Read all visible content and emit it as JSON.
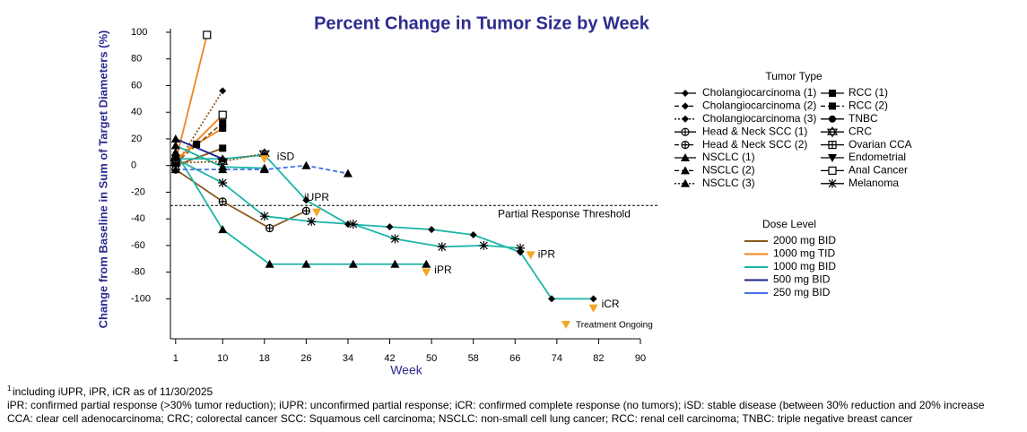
{
  "chart_data": {
    "type": "line",
    "title": "Percent Change in Tumor Size by Week",
    "y_label": "Change from Baseline in Sum of Target Diameters (%)",
    "x_label": "Week",
    "xlim": [
      0,
      90
    ],
    "xticks": [
      1,
      10,
      18,
      26,
      34,
      42,
      50,
      58,
      66,
      74,
      82,
      90
    ],
    "ylim": [
      -130,
      100
    ],
    "yticks": [
      -100,
      -80,
      -60,
      -40,
      -20,
      0,
      20,
      40,
      60,
      80,
      100
    ],
    "threshold": {
      "value": -30,
      "label": "Partial Response Threshold"
    },
    "series": [
      {
        "color": "#F5821F",
        "marker": "open-square",
        "dash": "solid",
        "x": [
          1,
          7
        ],
        "values": [
          3,
          98
        ]
      },
      {
        "color": "#8B5A1E",
        "marker": "diamond",
        "dash": "dotted",
        "x": [
          1,
          10
        ],
        "values": [
          0,
          56
        ]
      },
      {
        "color": "#F5821F",
        "marker": "square",
        "dash": "solid",
        "x": [
          1,
          5,
          10
        ],
        "values": [
          5,
          16,
          28
        ]
      },
      {
        "color": "#8B5A1E",
        "marker": "square",
        "dash": "dashed",
        "x": [
          1,
          10
        ],
        "values": [
          2,
          32
        ]
      },
      {
        "color": "#F5821F",
        "marker": "open-square",
        "dash": "solid",
        "x": [
          1,
          10
        ],
        "values": [
          3,
          38
        ]
      },
      {
        "color": "#8B5A1E",
        "marker": "square",
        "dash": "solid",
        "x": [
          1,
          10
        ],
        "values": [
          0,
          13
        ]
      },
      {
        "color": "#8B5A1E",
        "marker": "circle-plus",
        "dash": "solid",
        "x": [
          1,
          10,
          19,
          26
        ],
        "values": [
          -3,
          -27,
          -47,
          -34
        ]
      },
      {
        "color": "#1BB5A8",
        "marker": "triangle",
        "dash": "solid",
        "x": [
          1,
          10,
          19,
          26,
          35,
          43,
          49
        ],
        "values": [
          10,
          -48,
          -74,
          -74,
          -74,
          -74,
          -74
        ]
      },
      {
        "color": "#1BB5A8",
        "marker": "asterisk",
        "dash": "solid",
        "x": [
          1,
          10,
          18,
          27,
          35,
          43,
          52,
          60,
          67
        ],
        "values": [
          5,
          -13,
          -38,
          -42,
          -44,
          -55,
          -61,
          -60,
          -62
        ]
      },
      {
        "color": "#1BB5A8",
        "marker": "diamond",
        "dash": "solid",
        "x": [
          1,
          10,
          18,
          26,
          34,
          42,
          50,
          58,
          67,
          73,
          81
        ],
        "values": [
          5,
          5,
          8,
          -26,
          -44,
          -46,
          -48,
          -52,
          -65,
          -100,
          -100
        ]
      },
      {
        "color": "#1BB5A8",
        "marker": "triangle",
        "dash": "solid",
        "x": [
          1,
          10,
          18
        ],
        "values": [
          15,
          -1,
          -2
        ]
      },
      {
        "color": "#4472E8",
        "marker": "triangle",
        "dash": "dashed",
        "x": [
          1,
          10,
          18,
          26,
          34
        ],
        "values": [
          -3,
          -3,
          -3,
          0,
          -6
        ]
      },
      {
        "color": "#8B5A1E",
        "marker": "star-of-david",
        "dash": "dotted",
        "x": [
          1,
          10,
          18
        ],
        "values": [
          2,
          3,
          9
        ]
      },
      {
        "color": "#1B1F8A",
        "marker": "triangle",
        "dash": "solid",
        "x": [
          1,
          10
        ],
        "values": [
          20,
          5
        ]
      }
    ],
    "annotations": [
      {
        "text": "iSD",
        "x": 18,
        "y": 5
      },
      {
        "text": "iUPR",
        "x": 28,
        "y": -35
      },
      {
        "text": "iPR",
        "x": 69,
        "y": -67
      },
      {
        "text": "iPR",
        "x": 49,
        "y": -80
      },
      {
        "text": "iCR",
        "x": 81,
        "y": -107
      }
    ],
    "ongoing_label": "Treatment Ongoing",
    "tumor_legend": {
      "title": "Tumor Type",
      "items": [
        {
          "name": "Cholangiocarcinoma (1)",
          "marker": "diamond",
          "dash": "solid"
        },
        {
          "name": "Cholangiocarcinoma (2)",
          "marker": "diamond",
          "dash": "dashed"
        },
        {
          "name": "Cholangiocarcinoma (3)",
          "marker": "diamond",
          "dash": "dotted"
        },
        {
          "name": "Head & Neck SCC (1)",
          "marker": "circle-plus",
          "dash": "solid"
        },
        {
          "name": "Head & Neck SCC (2)",
          "marker": "circle-plus",
          "dash": "dashed"
        },
        {
          "name": "NSCLC (1)",
          "marker": "triangle",
          "dash": "solid"
        },
        {
          "name": "NSCLC (2)",
          "marker": "triangle",
          "dash": "dashed"
        },
        {
          "name": "NSCLC (3)",
          "marker": "triangle",
          "dash": "dotted"
        },
        {
          "name": "RCC (1)",
          "marker": "square",
          "dash": "solid"
        },
        {
          "name": "RCC (2)",
          "marker": "square",
          "dash": "dashed"
        },
        {
          "name": "TNBC",
          "marker": "circle",
          "dash": "solid"
        },
        {
          "name": "CRC",
          "marker": "star-of-david",
          "dash": "solid"
        },
        {
          "name": "Ovarian CCA",
          "marker": "square-plus",
          "dash": "solid"
        },
        {
          "name": "Endometrial",
          "marker": "down-triangle",
          "dash": "solid"
        },
        {
          "name": "Anal Cancer",
          "marker": "open-square",
          "dash": "solid"
        },
        {
          "name": "Melanoma",
          "marker": "asterisk",
          "dash": "solid"
        }
      ]
    },
    "dose_legend": {
      "title": "Dose Level",
      "items": [
        {
          "name": "2000 mg BID",
          "color": "#8B5A1E"
        },
        {
          "name": "1000 mg TID",
          "color": "#F5821F"
        },
        {
          "name": "1000 mg BID",
          "color": "#1BB5A8"
        },
        {
          "name": "500 mg BID",
          "color": "#1B1F8A"
        },
        {
          "name": "250 mg BID",
          "color": "#4472E8"
        }
      ]
    },
    "footnotes": {
      "marker": "1",
      "lines": [
        "including iUPR, iPR, iCR as of 11/30/2025",
        "iPR: confirmed partial response (>30% tumor reduction); iUPR: unconfirmed partial response; iCR: confirmed complete response (no tumors); iSD: stable disease (between 30% reduction and 20% increase",
        "CCA: clear cell adenocarcinoma; CRC; colorectal cancer SCC: Squamous cell carcinoma; NSCLC: non-small cell lung cancer; RCC: renal cell carcinoma; TNBC: triple negative breast cancer"
      ]
    }
  }
}
